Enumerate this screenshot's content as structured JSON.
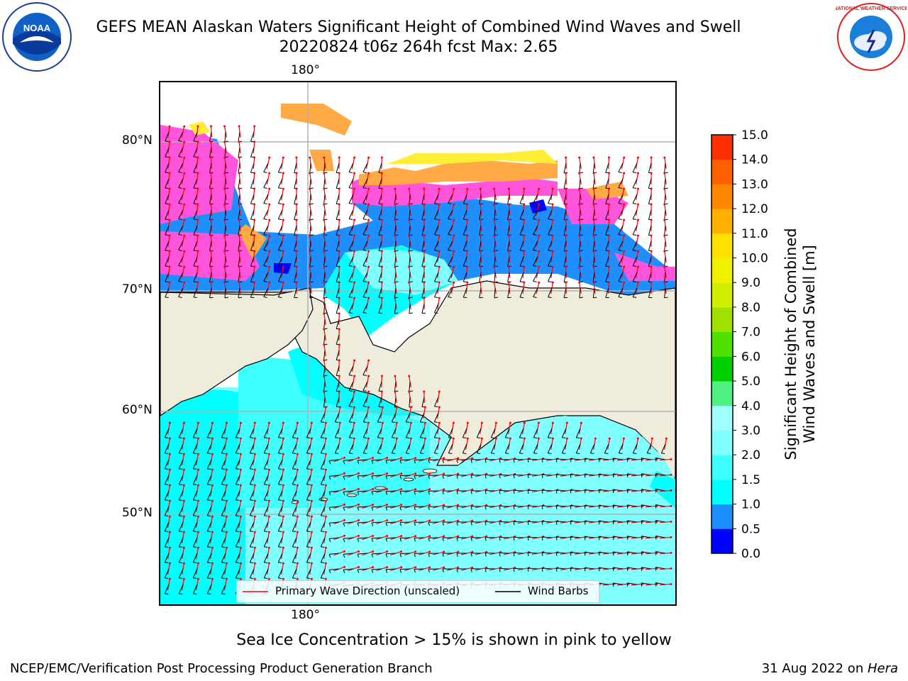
{
  "header": {
    "title_line1": "GEFS MEAN Alaskan Waters Significant Height of Combined Wind Waves and Swell",
    "title_line2": "20220824 t06z 264h fcst   Max: 2.65"
  },
  "logos": {
    "left": {
      "name": "noaa-logo",
      "text": "NOAA"
    },
    "right": {
      "name": "nws-logo",
      "text": "NATIONAL WEATHER SERVICE"
    }
  },
  "map": {
    "lon_label_top": "180°",
    "lon_label_bottom": "180°",
    "lat_labels": [
      "80°N",
      "70°N",
      "60°N",
      "50°N"
    ],
    "legend": {
      "wave_label": "Primary Wave Direction (unscaled)",
      "wind_label": "Wind Barbs",
      "wave_color": "#ff0000",
      "wind_color": "#000000"
    },
    "colors": {
      "land": "#efecdc",
      "ocean_low": "#00ffff",
      "ocean_mid": "#7fffff",
      "deep_blue": "#0000ff",
      "mid_blue": "#1e8fff",
      "ice_pink": "#ff55dd",
      "ice_orange": "#ffaa44",
      "ice_yellow": "#ffee33"
    }
  },
  "colorbar": {
    "label_line1": "Significant Height of Combined",
    "label_line2": "Wind Waves and Swell [m]",
    "ticks": [
      "0.0",
      "0.5",
      "1.0",
      "1.5",
      "2.0",
      "3.0",
      "4.0",
      "5.0",
      "6.0",
      "7.0",
      "8.0",
      "9.0",
      "10.0",
      "11.0",
      "12.0",
      "13.0",
      "14.0",
      "15.0"
    ],
    "colors": [
      "#0000ff",
      "#1e8fff",
      "#00ffff",
      "#40ffff",
      "#7fffff",
      "#a0ffff",
      "#50f080",
      "#00d000",
      "#50e000",
      "#a0e000",
      "#d0f000",
      "#f0f000",
      "#ffe000",
      "#ffb000",
      "#ff8800",
      "#ff6000",
      "#ff3000",
      "#ff0000"
    ]
  },
  "note": "Sea Ice Concentration > 15% is shown in pink to yellow",
  "footer": {
    "left": "NCEP/EMC/Verification Post Processing Product Generation Branch",
    "right_date": "31 Aug 2022 on ",
    "right_machine": "Hera"
  }
}
